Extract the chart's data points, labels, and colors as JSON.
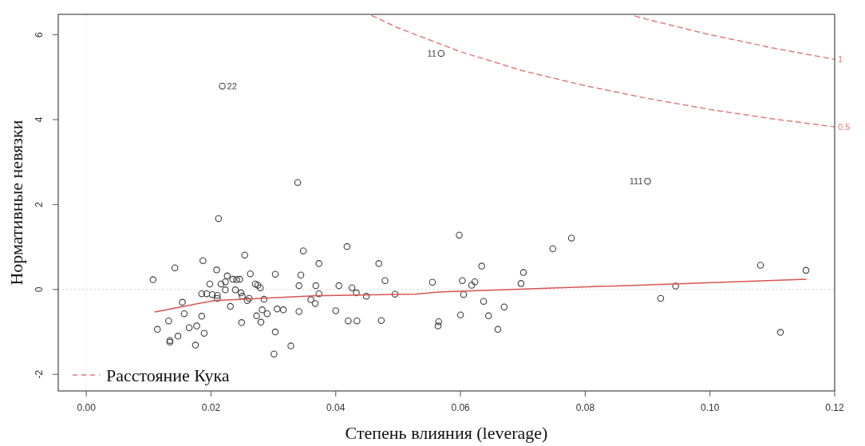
{
  "chart_data": {
    "type": "scatter",
    "xlabel": "Степень влияния (leverage)",
    "ylabel": "Нормативные невязки",
    "xlim": [
      -0.0045,
      0.12
    ],
    "ylim": [
      -2.39,
      6.48
    ],
    "xticks": [
      {
        "value": 0,
        "label": "0.00"
      },
      {
        "value": 0.02,
        "label": "0.02"
      },
      {
        "value": 0.04,
        "label": "0.04"
      },
      {
        "value": 0.06,
        "label": "0.06"
      },
      {
        "value": 0.08,
        "label": "0.08"
      },
      {
        "value": 0.1,
        "label": "0.10"
      },
      {
        "value": 0.12,
        "label": "0.12"
      }
    ],
    "yticks": [
      -2,
      0,
      2,
      4,
      6
    ],
    "grid": false,
    "legend": "bottom left",
    "ref_lines": [
      {
        "axis": "y",
        "value": 0,
        "color": "#d0d0d0",
        "line_style": "dotted"
      },
      {
        "axis": "x",
        "value": 0,
        "color": "#e6e6e6",
        "line_style": "dotted"
      }
    ],
    "annotations": [
      {
        "text": "22",
        "x": 0.0218,
        "y": 4.79
      },
      {
        "text": "11",
        "x": 0.0569,
        "y": 5.56
      },
      {
        "text": "111",
        "x": 0.09,
        "y": 2.55
      },
      {
        "text": "1",
        "x": 0.12,
        "y": 5.42
      },
      {
        "text": "0.5",
        "x": 0.12,
        "y": 3.83
      }
    ],
    "series": [
      {
        "marker": "circle",
        "color": "#3a3a3a",
        "x": [
          0.0107,
          0.0142,
          0.0187,
          0.0209,
          0.0254,
          0.0348,
          0.0418,
          0.0373,
          0.0469,
          0.0303,
          0.0344,
          0.0263,
          0.0198,
          0.0216,
          0.0226,
          0.0235,
          0.0246,
          0.0241,
          0.0223,
          0.0271,
          0.0275,
          0.0279,
          0.0223,
          0.0239,
          0.0248,
          0.0185,
          0.0193,
          0.0202,
          0.021,
          0.021,
          0.025,
          0.0261,
          0.0258,
          0.0285,
          0.0341,
          0.0368,
          0.0405,
          0.0426,
          0.0373,
          0.0433,
          0.0449,
          0.0495,
          0.0479,
          0.0555,
          0.036,
          0.0367,
          0.0154,
          0.0231,
          0.0157,
          0.0185,
          0.0132,
          0.0249,
          0.0273,
          0.028,
          0.0282,
          0.029,
          0.0306,
          0.0316,
          0.0341,
          0.04,
          0.042,
          0.0434,
          0.0473,
          0.0565,
          0.0564,
          0.0114,
          0.0165,
          0.0177,
          0.0189,
          0.0147,
          0.0134,
          0.0134,
          0.0175,
          0.0303,
          0.0328,
          0.0301,
          0.0339,
          0.0212,
          0.0598,
          0.0778,
          0.0748,
          0.0634,
          0.0701,
          0.0603,
          0.0623,
          0.0618,
          0.0697,
          0.0605,
          0.0637,
          0.067,
          0.06,
          0.0645,
          0.066,
          0.0921,
          0.0945,
          0.1081,
          0.1154,
          0.1113,
          0.0218,
          0.0569,
          0.09
        ],
        "values": [
          0.23,
          0.51,
          0.68,
          0.46,
          0.81,
          0.91,
          1.01,
          0.61,
          0.61,
          0.36,
          0.34,
          0.37,
          0.13,
          0.13,
          0.32,
          0.24,
          0.24,
          0.23,
          0.18,
          0.13,
          0.1,
          0.04,
          -0.01,
          -0.01,
          -0.08,
          -0.1,
          -0.1,
          -0.12,
          -0.14,
          -0.21,
          -0.16,
          -0.21,
          -0.26,
          -0.23,
          0.09,
          0.09,
          0.09,
          0.04,
          -0.1,
          -0.08,
          -0.16,
          -0.11,
          0.21,
          0.17,
          -0.24,
          -0.33,
          -0.3,
          -0.4,
          -0.57,
          -0.63,
          -0.74,
          -0.78,
          -0.62,
          -0.77,
          -0.48,
          -0.57,
          -0.46,
          -0.48,
          -0.52,
          -0.5,
          -0.74,
          -0.74,
          -0.73,
          -0.76,
          -0.86,
          -0.94,
          -0.9,
          -0.86,
          -1.03,
          -1.1,
          -1.2,
          -1.24,
          -1.31,
          -1.0,
          -1.33,
          -1.52,
          2.52,
          1.67,
          1.28,
          1.21,
          0.96,
          0.55,
          0.4,
          0.21,
          0.18,
          0.1,
          0.14,
          -0.12,
          -0.28,
          -0.41,
          -0.6,
          -0.62,
          -0.94,
          -0.21,
          0.08,
          0.57,
          0.45,
          -1.01,
          4.79,
          5.56,
          2.55
        ]
      },
      {
        "type": "line",
        "color": "#d9534f",
        "x": [
          0.011,
          0.0205,
          0.0365,
          0.0527,
          0.0565,
          0.094,
          0.1154
        ],
        "values": [
          -0.53,
          -0.26,
          -0.15,
          -0.11,
          -0.06,
          0.13,
          0.24
        ]
      },
      {
        "type": "line",
        "name": "Расстояние Кука",
        "color": "#e07b7b",
        "line_style": "dashed",
        "x": [
          0.0458,
          0.05,
          0.06,
          0.07,
          0.08,
          0.09,
          0.1,
          0.11,
          0.12
        ],
        "values": [
          6.45,
          6.16,
          5.6,
          5.15,
          4.8,
          4.5,
          4.24,
          4.02,
          3.83
        ]
      },
      {
        "type": "line",
        "color": "#e07b7b",
        "line_style": "dashed",
        "x": [
          0.088,
          0.09,
          0.1,
          0.11,
          0.12
        ],
        "values": [
          6.44,
          6.36,
          6.0,
          5.69,
          5.42
        ]
      }
    ]
  }
}
